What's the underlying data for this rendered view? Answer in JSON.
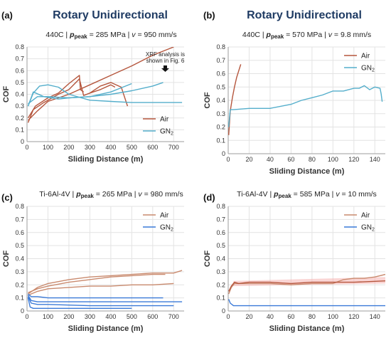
{
  "colors": {
    "air": "#b5563d",
    "air_light": "#c98a6e",
    "air_band": "#f6b3b0",
    "gn2": "#54aecb",
    "gn2_dark": "#3a7ad8",
    "grid": "#e3e3e3",
    "title": "#1f3b63"
  },
  "titles": {
    "left": "Rotary Unidirectional",
    "right": "Rotary Unidirectional"
  },
  "chart_data": [
    {
      "type": "line",
      "panel_label": "(a)",
      "subtitle_parts": [
        "440C  |  ",
        "p",
        "peak",
        " = 285 MPa  |  ",
        "v",
        " = 950 mm/s"
      ],
      "xlabel": "Sliding Distance (m)",
      "ylabel": "COF",
      "xlim": [
        0,
        750
      ],
      "ylim": [
        0,
        0.8
      ],
      "xticks": [
        0,
        100,
        200,
        300,
        400,
        500,
        600,
        700
      ],
      "yticks": [
        0,
        0.1,
        0.2,
        0.3,
        0.4,
        0.5,
        0.6,
        0.7,
        0.8
      ],
      "ytick_labels": [
        "0",
        "0.1",
        "0.2",
        "0.3",
        "0.4",
        "0.5",
        "0.6",
        "0.7",
        "0.8"
      ],
      "legend": {
        "position": "bottom-right",
        "entries": [
          {
            "label": "Air",
            "sub": "",
            "color_key": "air"
          },
          {
            "label": "GN",
            "sub": "2",
            "color_key": "gn2"
          }
        ]
      },
      "annotation": {
        "lines": [
          "XRF analysis is",
          "shown in Fig. 6"
        ],
        "arrow_target": [
          660,
          0.5
        ]
      },
      "series": [
        {
          "color_key": "air",
          "x": [
            5,
            30,
            80,
            150,
            200,
            250,
            270,
            300,
            350,
            400,
            450,
            480
          ],
          "y": [
            0.16,
            0.27,
            0.33,
            0.4,
            0.44,
            0.53,
            0.39,
            0.41,
            0.47,
            0.5,
            0.46,
            0.3
          ]
        },
        {
          "color_key": "air",
          "x": [
            5,
            40,
            100,
            150,
            200,
            250,
            255,
            270
          ],
          "y": [
            0.2,
            0.3,
            0.37,
            0.41,
            0.49,
            0.56,
            0.44,
            0.42
          ]
        },
        {
          "color_key": "air",
          "x": [
            5,
            50,
            100,
            200,
            300,
            400,
            500,
            600,
            700
          ],
          "y": [
            0.18,
            0.26,
            0.34,
            0.4,
            0.48,
            0.56,
            0.64,
            0.73,
            0.8
          ]
        },
        {
          "color_key": "air",
          "x": [
            300,
            350,
            400,
            420
          ],
          "y": [
            0.41,
            0.44,
            0.48,
            0.46
          ]
        },
        {
          "color_key": "gn2",
          "x": [
            5,
            30,
            60,
            100,
            150,
            200,
            300,
            400,
            500,
            600,
            700,
            740
          ],
          "y": [
            0.3,
            0.41,
            0.47,
            0.48,
            0.46,
            0.4,
            0.35,
            0.34,
            0.33,
            0.33,
            0.33,
            0.33
          ]
        },
        {
          "color_key": "gn2",
          "x": [
            5,
            30,
            80,
            150,
            200,
            300,
            400,
            500,
            600,
            650
          ],
          "y": [
            0.3,
            0.42,
            0.38,
            0.36,
            0.37,
            0.38,
            0.4,
            0.43,
            0.47,
            0.5
          ]
        },
        {
          "color_key": "gn2",
          "x": [
            5,
            50,
            100,
            200,
            300,
            400,
            500
          ],
          "y": [
            0.32,
            0.38,
            0.38,
            0.37,
            0.38,
            0.42,
            0.49
          ]
        }
      ]
    },
    {
      "type": "line",
      "panel_label": "(b)",
      "subtitle_parts": [
        "440C  |  ",
        "p",
        "peak",
        " = 570 MPa  |  ",
        "v",
        " = 9.8 mm/s"
      ],
      "xlabel": "Sliding Distance (m)",
      "ylabel": "COF",
      "xlim": [
        0,
        150
      ],
      "ylim": [
        0,
        0.8
      ],
      "xticks": [
        0,
        20,
        40,
        60,
        80,
        100,
        120,
        140
      ],
      "yticks": [
        0,
        0.1,
        0.2,
        0.3,
        0.4,
        0.5,
        0.6,
        0.7,
        0.8
      ],
      "ytick_labels": [
        "0",
        "0.1",
        "0.2",
        "0.3",
        "0.4",
        "0.5",
        "0.6",
        "0.7",
        "0.8"
      ],
      "legend": {
        "position": "top-right",
        "entries": [
          {
            "label": "Air",
            "sub": "",
            "color_key": "air"
          },
          {
            "label": "GN",
            "sub": "2",
            "color_key": "gn2"
          }
        ]
      },
      "series": [
        {
          "color_key": "air",
          "x": [
            0.5,
            2,
            4,
            6,
            8,
            10,
            12
          ],
          "y": [
            0.14,
            0.32,
            0.42,
            0.5,
            0.57,
            0.62,
            0.67
          ]
        },
        {
          "color_key": "gn2",
          "x": [
            0.5,
            2,
            5,
            20,
            40,
            60,
            70,
            80,
            90,
            100,
            110,
            120,
            125,
            130,
            135,
            140,
            145,
            146,
            147
          ],
          "y": [
            0.2,
            0.33,
            0.33,
            0.34,
            0.34,
            0.37,
            0.4,
            0.42,
            0.44,
            0.47,
            0.47,
            0.49,
            0.49,
            0.51,
            0.48,
            0.5,
            0.49,
            0.45,
            0.39
          ]
        }
      ]
    },
    {
      "type": "line",
      "panel_label": "(c)",
      "subtitle_parts": [
        "Ti-6Al-4V  |  ",
        "p",
        "peak",
        " = 265 MPa  |  ",
        "v",
        " = 980 mm/s"
      ],
      "xlabel": "Sliding Distance (m)",
      "ylabel": "COF",
      "xlim": [
        0,
        750
      ],
      "ylim": [
        0,
        0.8
      ],
      "xticks": [
        0,
        100,
        200,
        300,
        400,
        500,
        600,
        700
      ],
      "yticks": [
        0,
        0.1,
        0.2,
        0.3,
        0.4,
        0.5,
        0.6,
        0.7,
        0.8
      ],
      "ytick_labels": [
        "0",
        "0.1",
        "0.2",
        "0.3",
        "0.4",
        "0.5",
        "0.6",
        "0.7",
        "0.8"
      ],
      "legend": {
        "position": "top-right",
        "entries": [
          {
            "label": "Air",
            "sub": "",
            "color_key": "air_light"
          },
          {
            "label": "GN",
            "sub": "2",
            "color_key": "gn2_dark"
          }
        ]
      },
      "series": [
        {
          "color_key": "air_light",
          "x": [
            5,
            50,
            100,
            200,
            300,
            400,
            500,
            600,
            700,
            740
          ],
          "y": [
            0.13,
            0.18,
            0.21,
            0.24,
            0.26,
            0.27,
            0.28,
            0.29,
            0.29,
            0.31
          ]
        },
        {
          "color_key": "air_light",
          "x": [
            5,
            50,
            100,
            200,
            300,
            400,
            500,
            600,
            660
          ],
          "y": [
            0.14,
            0.17,
            0.19,
            0.22,
            0.24,
            0.26,
            0.27,
            0.28,
            0.28
          ]
        },
        {
          "color_key": "air_light",
          "x": [
            5,
            50,
            100,
            200,
            300,
            400,
            500,
            600,
            700
          ],
          "y": [
            0.12,
            0.15,
            0.17,
            0.18,
            0.19,
            0.19,
            0.2,
            0.2,
            0.21
          ]
        },
        {
          "color_key": "gn2_dark",
          "x": [
            5,
            20,
            50,
            100,
            300,
            500,
            650
          ],
          "y": [
            0.13,
            0.11,
            0.11,
            0.1,
            0.1,
            0.1,
            0.1
          ]
        },
        {
          "color_key": "gn2_dark",
          "x": [
            5,
            20,
            50,
            100,
            300,
            500,
            740
          ],
          "y": [
            0.12,
            0.08,
            0.07,
            0.07,
            0.07,
            0.07,
            0.07
          ]
        },
        {
          "color_key": "gn2_dark",
          "x": [
            5,
            20,
            50,
            100,
            300,
            500,
            700
          ],
          "y": [
            0.11,
            0.06,
            0.05,
            0.05,
            0.04,
            0.04,
            0.04
          ]
        },
        {
          "color_key": "gn2_dark",
          "x": [
            5,
            15,
            30,
            100,
            300,
            500
          ],
          "y": [
            0.1,
            0.03,
            0.02,
            0.02,
            0.02,
            0.02
          ]
        }
      ]
    },
    {
      "type": "line",
      "panel_label": "(d)",
      "subtitle_parts": [
        "Ti-6Al-4V  |  ",
        "p",
        "peak",
        " = 585 MPa  |  ",
        "v",
        " = 10 mm/s"
      ],
      "xlabel": "Sliding Distance (m)",
      "ylabel": "COF",
      "xlim": [
        0,
        150
      ],
      "ylim": [
        0,
        0.8
      ],
      "xticks": [
        0,
        20,
        40,
        60,
        80,
        100,
        120,
        140
      ],
      "yticks": [
        0,
        0.1,
        0.2,
        0.3,
        0.4,
        0.5,
        0.6,
        0.7,
        0.8
      ],
      "ytick_labels": [
        "0",
        "0.1",
        "0.2",
        "0.3",
        "0.4",
        "0.5",
        "0.6",
        "0.7",
        "0.8"
      ],
      "legend": {
        "position": "top-right",
        "entries": [
          {
            "label": "Air",
            "sub": "",
            "color_key": "air_light"
          },
          {
            "label": "GN",
            "sub": "2",
            "color_key": "gn2_dark"
          }
        ]
      },
      "band": {
        "color_key": "air_band",
        "x": [
          5,
          150
        ],
        "y_low": [
          0.19,
          0.21
        ],
        "y_high": [
          0.23,
          0.26
        ]
      },
      "series": [
        {
          "color_key": "air_light",
          "x": [
            0.5,
            3,
            6,
            10,
            20,
            40,
            60,
            80,
            100,
            110,
            120,
            130,
            140,
            150
          ],
          "y": [
            0.13,
            0.18,
            0.21,
            0.21,
            0.21,
            0.21,
            0.2,
            0.21,
            0.21,
            0.24,
            0.25,
            0.25,
            0.26,
            0.28
          ]
        },
        {
          "color_key": "air",
          "x": [
            0.5,
            3,
            6,
            10,
            20,
            40,
            60,
            80,
            100,
            120,
            150
          ],
          "y": [
            0.15,
            0.19,
            0.22,
            0.21,
            0.22,
            0.22,
            0.21,
            0.22,
            0.22,
            0.22,
            0.23
          ]
        },
        {
          "color_key": "gn2_dark",
          "x": [
            0.5,
            2,
            5,
            10,
            30,
            60,
            100,
            150
          ],
          "y": [
            0.09,
            0.06,
            0.04,
            0.04,
            0.04,
            0.04,
            0.04,
            0.04
          ]
        }
      ]
    }
  ]
}
